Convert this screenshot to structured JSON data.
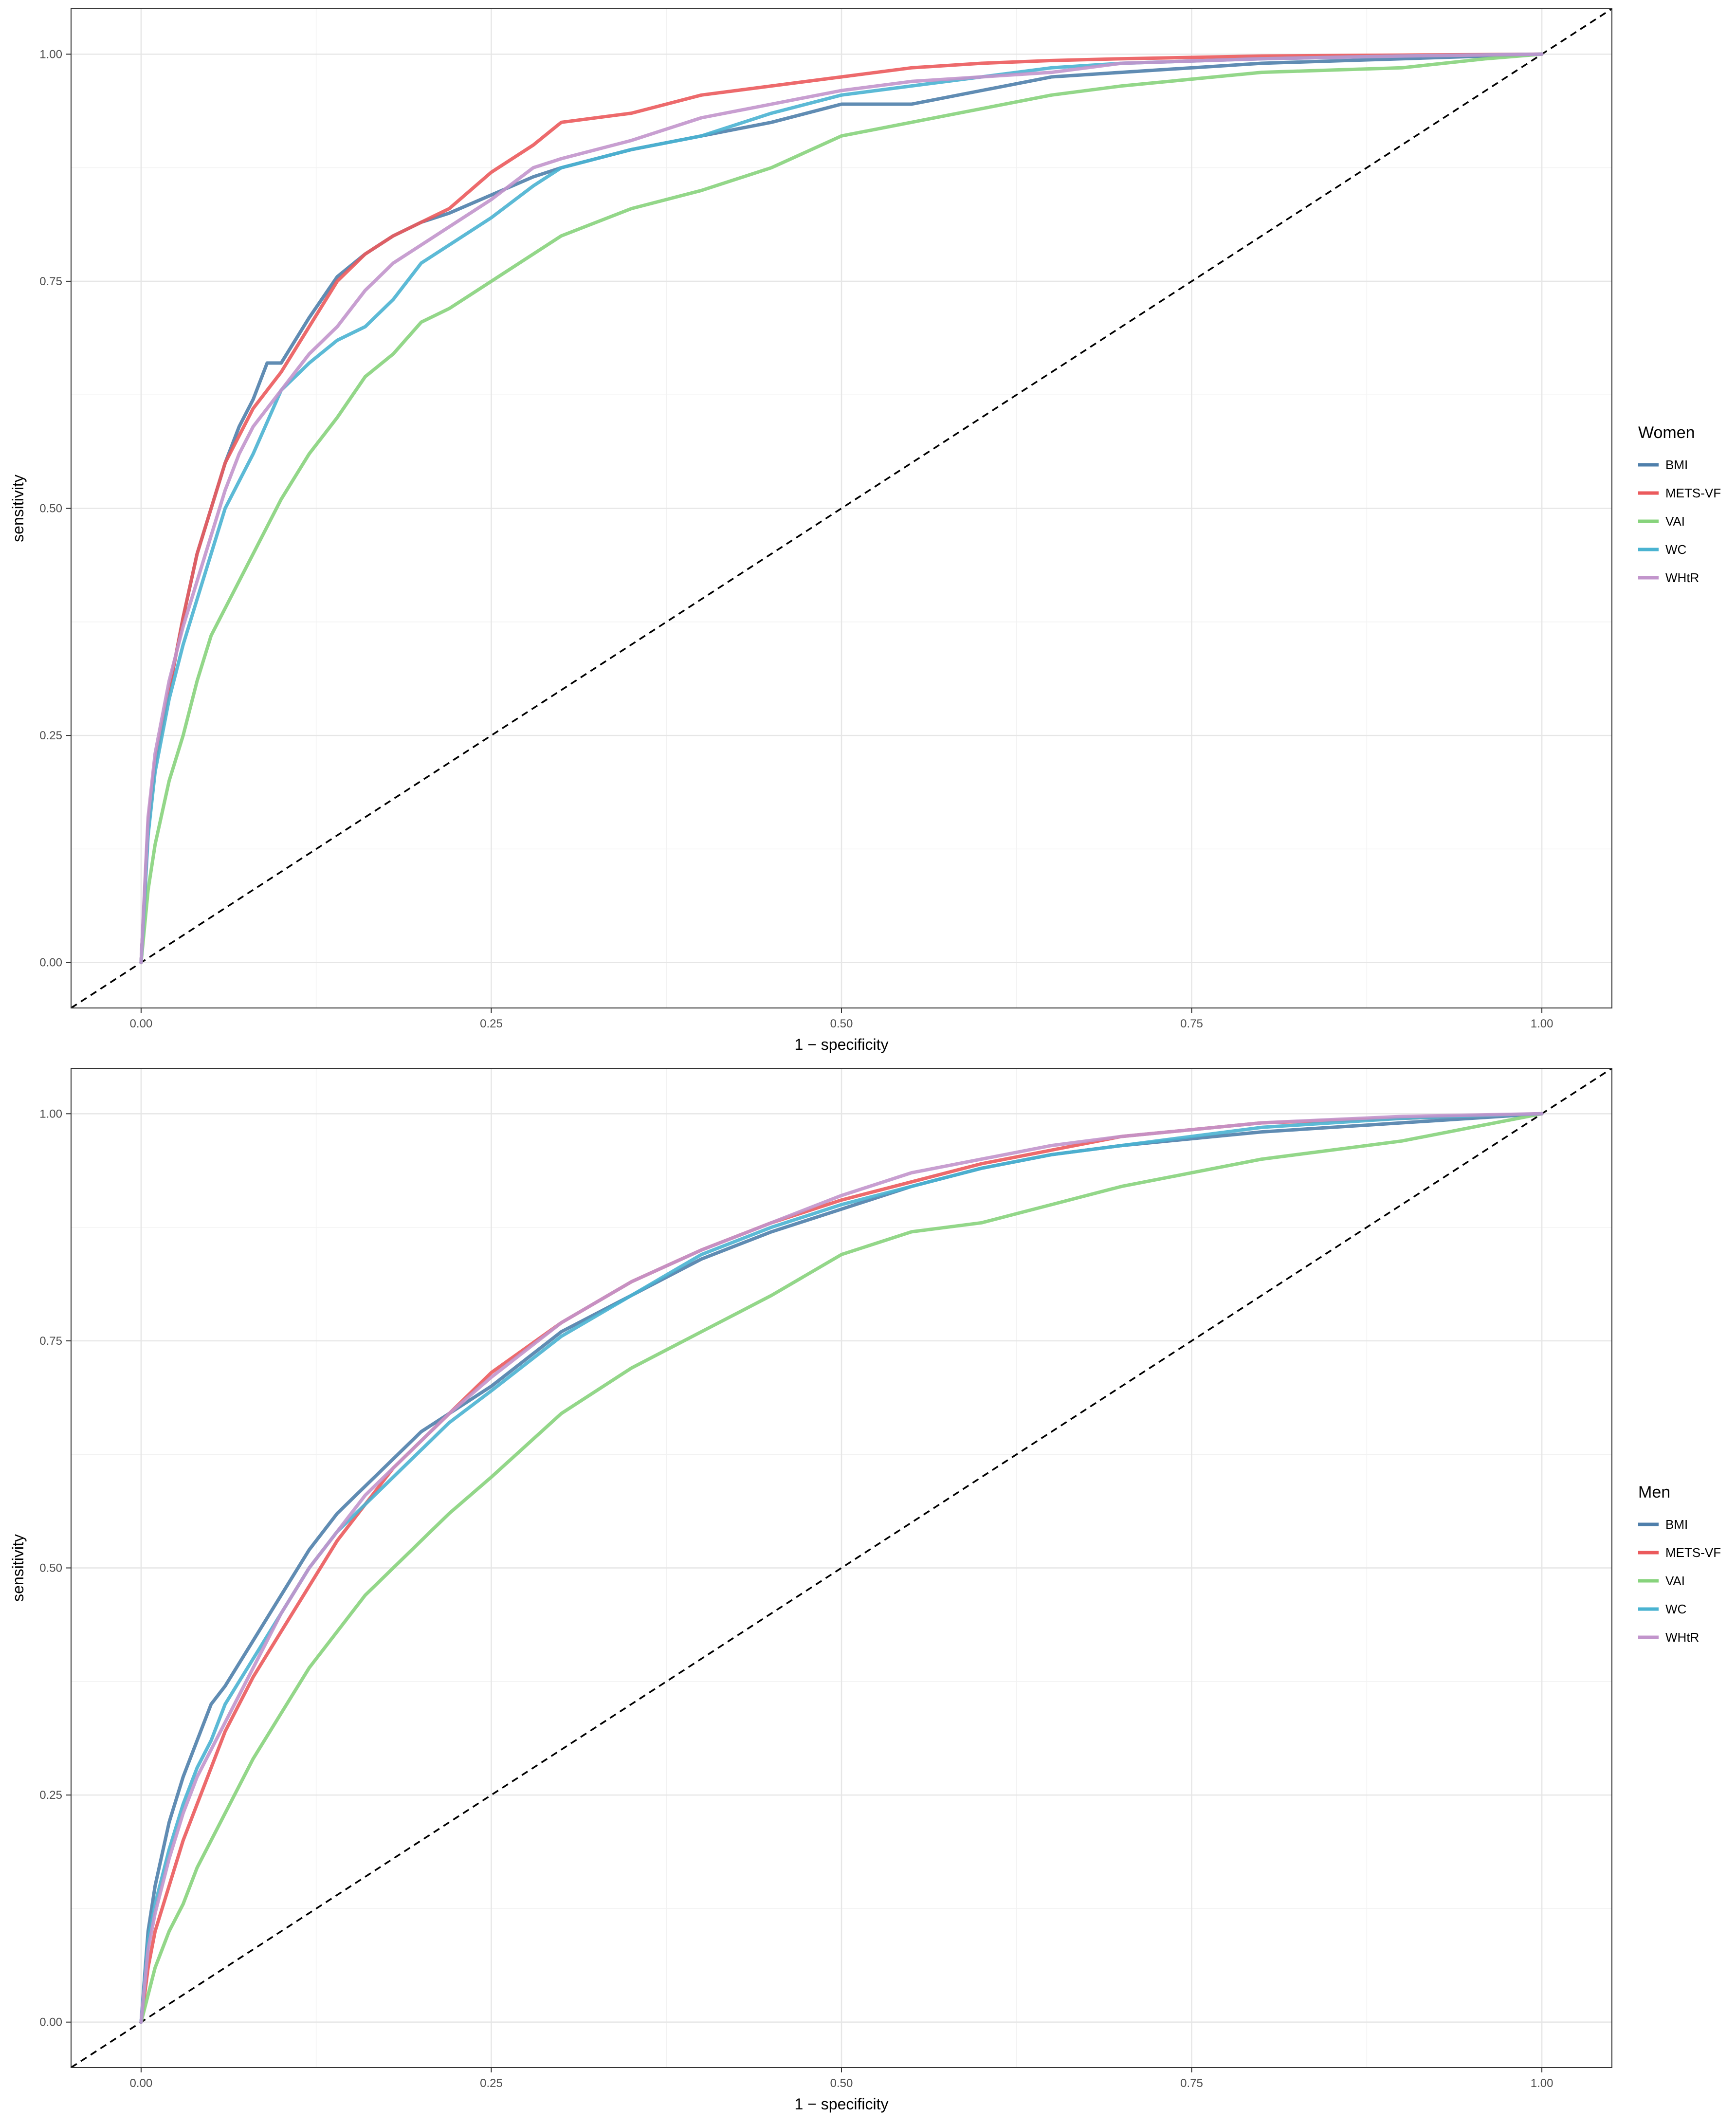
{
  "chart_data": [
    {
      "type": "line",
      "title": "",
      "xlabel": "1 − specificity",
      "ylabel": "sensitivity",
      "xlim": [
        -0.05,
        1.05
      ],
      "ylim": [
        -0.05,
        1.05
      ],
      "x_ticks": [
        "0.00",
        "0.25",
        "0.50",
        "0.75",
        "1.00"
      ],
      "y_ticks": [
        "0.00",
        "0.25",
        "0.50",
        "0.75",
        "1.00"
      ],
      "grid": true,
      "legend_title": "Women",
      "legend_position": "right",
      "reference_line": {
        "style": "dashed",
        "from": [
          0,
          0
        ],
        "to": [
          1,
          1
        ]
      },
      "series": [
        {
          "name": "BMI",
          "color": "#4f7fab",
          "x": [
            0,
            0.005,
            0.01,
            0.02,
            0.03,
            0.04,
            0.05,
            0.06,
            0.07,
            0.08,
            0.09,
            0.1,
            0.12,
            0.14,
            0.16,
            0.18,
            0.2,
            0.22,
            0.25,
            0.28,
            0.3,
            0.35,
            0.4,
            0.45,
            0.5,
            0.55,
            0.6,
            0.65,
            0.7,
            0.8,
            0.9,
            1.0
          ],
          "y": [
            0,
            0.15,
            0.22,
            0.3,
            0.38,
            0.45,
            0.5,
            0.55,
            0.59,
            0.62,
            0.66,
            0.66,
            0.71,
            0.755,
            0.78,
            0.8,
            0.815,
            0.825,
            0.845,
            0.865,
            0.875,
            0.895,
            0.91,
            0.925,
            0.945,
            0.945,
            0.96,
            0.975,
            0.98,
            0.99,
            0.995,
            1.0
          ]
        },
        {
          "name": "METS-VF",
          "color": "#eb5a5c",
          "x": [
            0,
            0.005,
            0.01,
            0.02,
            0.03,
            0.04,
            0.05,
            0.06,
            0.07,
            0.08,
            0.09,
            0.1,
            0.12,
            0.14,
            0.16,
            0.18,
            0.2,
            0.22,
            0.25,
            0.28,
            0.3,
            0.35,
            0.4,
            0.45,
            0.5,
            0.55,
            0.6,
            0.65,
            0.7,
            0.8,
            0.9,
            1.0
          ],
          "y": [
            0,
            0.15,
            0.22,
            0.3,
            0.38,
            0.45,
            0.5,
            0.55,
            0.58,
            0.61,
            0.63,
            0.65,
            0.7,
            0.75,
            0.78,
            0.8,
            0.815,
            0.83,
            0.87,
            0.9,
            0.925,
            0.935,
            0.955,
            0.965,
            0.975,
            0.985,
            0.99,
            0.993,
            0.995,
            0.998,
            0.999,
            1.0
          ]
        },
        {
          "name": "VAI",
          "color": "#87d37c",
          "x": [
            0,
            0.005,
            0.01,
            0.02,
            0.03,
            0.04,
            0.05,
            0.06,
            0.07,
            0.08,
            0.1,
            0.12,
            0.14,
            0.16,
            0.18,
            0.2,
            0.22,
            0.25,
            0.28,
            0.3,
            0.35,
            0.4,
            0.45,
            0.5,
            0.55,
            0.6,
            0.65,
            0.7,
            0.8,
            0.9,
            0.96,
            1.0
          ],
          "y": [
            0,
            0.08,
            0.13,
            0.2,
            0.25,
            0.31,
            0.36,
            0.39,
            0.42,
            0.45,
            0.51,
            0.56,
            0.6,
            0.645,
            0.67,
            0.705,
            0.72,
            0.75,
            0.78,
            0.8,
            0.83,
            0.85,
            0.875,
            0.91,
            0.925,
            0.94,
            0.955,
            0.965,
            0.98,
            0.985,
            0.995,
            1.0
          ]
        },
        {
          "name": "WC",
          "color": "#4ab3d1",
          "x": [
            0,
            0.005,
            0.01,
            0.02,
            0.03,
            0.04,
            0.05,
            0.06,
            0.07,
            0.08,
            0.1,
            0.12,
            0.14,
            0.16,
            0.18,
            0.2,
            0.22,
            0.25,
            0.28,
            0.3,
            0.35,
            0.4,
            0.45,
            0.5,
            0.55,
            0.6,
            0.65,
            0.7,
            0.8,
            0.9,
            1.0
          ],
          "y": [
            0,
            0.14,
            0.21,
            0.29,
            0.35,
            0.4,
            0.45,
            0.5,
            0.53,
            0.56,
            0.63,
            0.66,
            0.685,
            0.7,
            0.73,
            0.77,
            0.79,
            0.82,
            0.855,
            0.875,
            0.895,
            0.91,
            0.935,
            0.955,
            0.965,
            0.975,
            0.985,
            0.99,
            0.995,
            0.998,
            1.0
          ]
        },
        {
          "name": "WHtR",
          "color": "#c295cc",
          "x": [
            0,
            0.005,
            0.01,
            0.02,
            0.03,
            0.04,
            0.05,
            0.06,
            0.07,
            0.08,
            0.1,
            0.12,
            0.14,
            0.16,
            0.18,
            0.2,
            0.22,
            0.25,
            0.28,
            0.3,
            0.35,
            0.4,
            0.45,
            0.5,
            0.55,
            0.6,
            0.65,
            0.7,
            0.8,
            0.9,
            1.0
          ],
          "y": [
            0,
            0.16,
            0.23,
            0.31,
            0.37,
            0.42,
            0.47,
            0.52,
            0.56,
            0.59,
            0.63,
            0.67,
            0.7,
            0.74,
            0.77,
            0.79,
            0.81,
            0.84,
            0.875,
            0.885,
            0.905,
            0.93,
            0.945,
            0.96,
            0.97,
            0.975,
            0.98,
            0.99,
            0.995,
            0.998,
            1.0
          ]
        }
      ]
    },
    {
      "type": "line",
      "title": "",
      "xlabel": "1 − specificity",
      "ylabel": "sensitivity",
      "xlim": [
        -0.05,
        1.05
      ],
      "ylim": [
        -0.05,
        1.05
      ],
      "x_ticks": [
        "0.00",
        "0.25",
        "0.50",
        "0.75",
        "1.00"
      ],
      "y_ticks": [
        "0.00",
        "0.25",
        "0.50",
        "0.75",
        "1.00"
      ],
      "grid": true,
      "legend_title": "Men",
      "legend_position": "right",
      "reference_line": {
        "style": "dashed",
        "from": [
          0,
          0
        ],
        "to": [
          1,
          1
        ]
      },
      "series": [
        {
          "name": "BMI",
          "color": "#4f7fab",
          "x": [
            0,
            0.005,
            0.01,
            0.02,
            0.03,
            0.04,
            0.05,
            0.06,
            0.08,
            0.1,
            0.12,
            0.14,
            0.16,
            0.18,
            0.2,
            0.22,
            0.25,
            0.3,
            0.35,
            0.4,
            0.45,
            0.5,
            0.55,
            0.6,
            0.65,
            0.7,
            0.8,
            0.9,
            1.0
          ],
          "y": [
            0,
            0.1,
            0.15,
            0.22,
            0.27,
            0.31,
            0.35,
            0.37,
            0.42,
            0.47,
            0.52,
            0.56,
            0.59,
            0.62,
            0.65,
            0.67,
            0.7,
            0.76,
            0.8,
            0.84,
            0.87,
            0.895,
            0.92,
            0.94,
            0.955,
            0.965,
            0.98,
            0.99,
            1.0
          ]
        },
        {
          "name": "METS-VF",
          "color": "#eb5a5c",
          "x": [
            0,
            0.005,
            0.01,
            0.02,
            0.03,
            0.04,
            0.05,
            0.06,
            0.08,
            0.1,
            0.12,
            0.14,
            0.16,
            0.18,
            0.2,
            0.22,
            0.25,
            0.3,
            0.35,
            0.4,
            0.45,
            0.5,
            0.55,
            0.6,
            0.65,
            0.7,
            0.8,
            0.9,
            1.0
          ],
          "y": [
            0,
            0.06,
            0.1,
            0.15,
            0.2,
            0.24,
            0.28,
            0.32,
            0.38,
            0.43,
            0.48,
            0.53,
            0.57,
            0.61,
            0.64,
            0.67,
            0.715,
            0.77,
            0.815,
            0.85,
            0.88,
            0.905,
            0.925,
            0.945,
            0.96,
            0.975,
            0.99,
            0.995,
            1.0
          ]
        },
        {
          "name": "VAI",
          "color": "#87d37c",
          "x": [
            0,
            0.005,
            0.01,
            0.02,
            0.03,
            0.04,
            0.05,
            0.06,
            0.08,
            0.1,
            0.12,
            0.14,
            0.16,
            0.18,
            0.2,
            0.22,
            0.25,
            0.3,
            0.35,
            0.4,
            0.45,
            0.5,
            0.55,
            0.6,
            0.65,
            0.7,
            0.75,
            0.8,
            0.9,
            1.0
          ],
          "y": [
            0,
            0.03,
            0.06,
            0.1,
            0.13,
            0.17,
            0.2,
            0.23,
            0.29,
            0.34,
            0.39,
            0.43,
            0.47,
            0.5,
            0.53,
            0.56,
            0.6,
            0.67,
            0.72,
            0.76,
            0.8,
            0.845,
            0.87,
            0.88,
            0.9,
            0.92,
            0.935,
            0.95,
            0.97,
            1.0
          ]
        },
        {
          "name": "WC",
          "color": "#4ab3d1",
          "x": [
            0,
            0.005,
            0.01,
            0.02,
            0.03,
            0.04,
            0.05,
            0.06,
            0.08,
            0.1,
            0.12,
            0.14,
            0.16,
            0.18,
            0.2,
            0.22,
            0.25,
            0.3,
            0.35,
            0.4,
            0.45,
            0.5,
            0.55,
            0.6,
            0.65,
            0.7,
            0.8,
            0.9,
            1.0
          ],
          "y": [
            0,
            0.09,
            0.13,
            0.19,
            0.24,
            0.28,
            0.31,
            0.35,
            0.4,
            0.45,
            0.5,
            0.54,
            0.57,
            0.6,
            0.63,
            0.66,
            0.695,
            0.755,
            0.8,
            0.845,
            0.875,
            0.9,
            0.92,
            0.94,
            0.955,
            0.965,
            0.985,
            0.995,
            1.0
          ]
        },
        {
          "name": "WHtR",
          "color": "#c295cc",
          "x": [
            0,
            0.005,
            0.01,
            0.02,
            0.03,
            0.04,
            0.05,
            0.06,
            0.08,
            0.1,
            0.12,
            0.14,
            0.16,
            0.18,
            0.2,
            0.22,
            0.25,
            0.3,
            0.35,
            0.4,
            0.45,
            0.5,
            0.55,
            0.6,
            0.65,
            0.7,
            0.8,
            0.9,
            1.0
          ],
          "y": [
            0,
            0.08,
            0.12,
            0.18,
            0.23,
            0.27,
            0.3,
            0.33,
            0.39,
            0.45,
            0.5,
            0.54,
            0.58,
            0.61,
            0.64,
            0.67,
            0.71,
            0.77,
            0.815,
            0.85,
            0.88,
            0.91,
            0.935,
            0.95,
            0.965,
            0.975,
            0.99,
            0.997,
            1.0
          ]
        }
      ]
    }
  ]
}
